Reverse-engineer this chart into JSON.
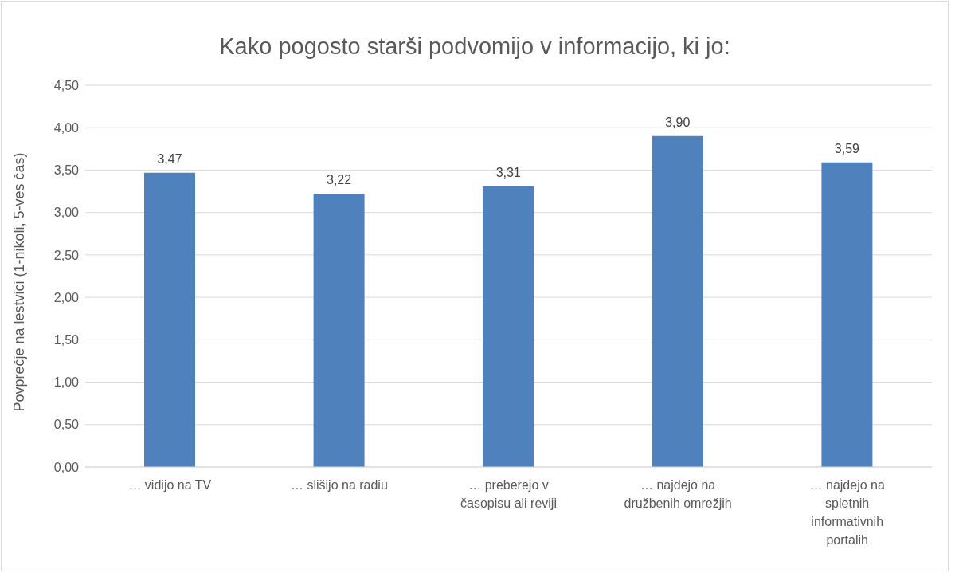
{
  "chart_data": {
    "type": "bar",
    "title": "Kako pogosto starši podvomijo v informacijo, ki jo:",
    "ylabel": "Povprečje na lestvici (1-nikoli, 5-ves čas)",
    "categories": [
      "… vidijo na TV",
      "… slišijo na radiu",
      "… preberejo v časopisu ali reviji",
      "… najdejo na družbenih omrežjih",
      "… najdejo na spletnih informativnih portalih"
    ],
    "values": [
      3.47,
      3.22,
      3.31,
      3.9,
      3.59
    ],
    "value_labels": [
      "3,47",
      "3,22",
      "3,31",
      "3,90",
      "3,59"
    ],
    "color": "#4f81bd",
    "ylim": [
      0,
      4.5
    ],
    "yticks": [
      {
        "value": 0,
        "label": "0,00"
      },
      {
        "value": 0.5,
        "label": "0,50"
      },
      {
        "value": 1,
        "label": "1,00"
      },
      {
        "value": 1.5,
        "label": "1,50"
      },
      {
        "value": 2,
        "label": "2,00"
      },
      {
        "value": 2.5,
        "label": "2,50"
      },
      {
        "value": 3,
        "label": "3,00"
      },
      {
        "value": 3.5,
        "label": "3,50"
      },
      {
        "value": 4,
        "label": "4,00"
      },
      {
        "value": 4.5,
        "label": "4,50"
      }
    ],
    "grid": "y",
    "legend": false
  }
}
